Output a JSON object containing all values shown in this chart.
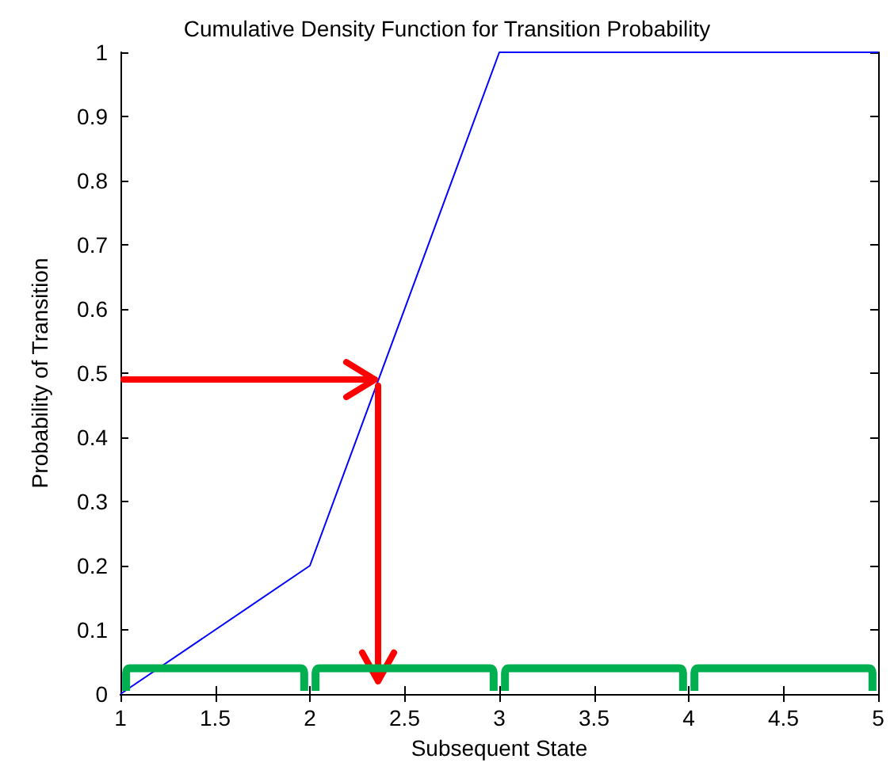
{
  "chart_data": {
    "type": "line",
    "title": "Cumulative Density Function for Transition Probability",
    "xlabel": "Subsequent State",
    "ylabel": "Probability of Transition",
    "x": [
      1,
      2,
      3,
      5
    ],
    "series": [
      {
        "color": "#0000ff",
        "values": [
          0,
          0.2,
          1,
          1
        ]
      }
    ],
    "xlim": [
      1,
      5
    ],
    "xticks": [
      1,
      1.5,
      2,
      2.5,
      3,
      3.5,
      4,
      4.5,
      5
    ],
    "ylim": [
      0,
      1
    ],
    "yticks": [
      0,
      0.1,
      0.2,
      0.3,
      0.4,
      0.5,
      0.6,
      0.7,
      0.8,
      0.9,
      1
    ],
    "grid": false,
    "marker": "none",
    "line_style": "solid"
  }
}
